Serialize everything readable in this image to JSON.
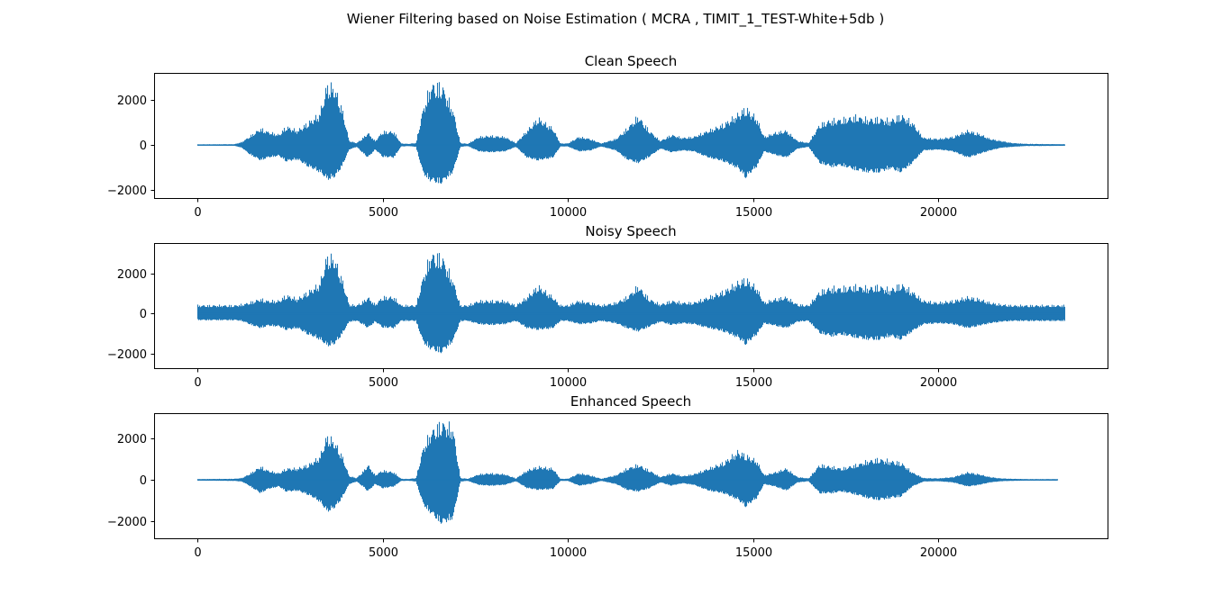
{
  "figure": {
    "suptitle": "Wiener Filtering based on Noise Estimation ( MCRA , TIMIT_1_TEST-White+5db )"
  },
  "chart_data": [
    {
      "type": "line",
      "title": "Clean Speech",
      "xlabel": "",
      "ylabel": "",
      "xlim": [
        -1170,
        24570
      ],
      "ylim": [
        -2350,
        3200
      ],
      "xticks": [
        0,
        5000,
        10000,
        15000,
        20000
      ],
      "yticks": [
        -2000,
        0,
        2000
      ],
      "xtick_labels": [
        "0",
        "5000",
        "10000",
        "15000",
        "20000"
      ],
      "ytick_labels": [
        "−2000",
        "0",
        "2000"
      ],
      "grid": false,
      "color": "#1f77b4",
      "n_samples": 23400,
      "envelope": {
        "x": [
          0,
          1000,
          1200,
          1400,
          1700,
          1900,
          2200,
          2400,
          2700,
          3000,
          3300,
          3500,
          3700,
          3900,
          4100,
          4300,
          4500,
          4600,
          4800,
          5000,
          5300,
          5500,
          5700,
          5900,
          6100,
          6300,
          6600,
          6900,
          7100,
          7300,
          7600,
          7900,
          8300,
          8600,
          8900,
          9200,
          9600,
          9800,
          10000,
          10300,
          10600,
          10900,
          11300,
          11600,
          11900,
          12200,
          12500,
          12800,
          13100,
          13400,
          13800,
          14200,
          14600,
          14800,
          15100,
          15300,
          15600,
          15900,
          16200,
          16500,
          16800,
          17100,
          17400,
          17800,
          18100,
          18400,
          18700,
          19000,
          19300,
          19600,
          20000,
          20400,
          20800,
          21100,
          21400,
          21700,
          22000,
          22400,
          22800,
          23400
        ],
        "max": [
          30,
          40,
          150,
          400,
          800,
          650,
          500,
          900,
          700,
          1100,
          1500,
          2900,
          2800,
          1800,
          200,
          100,
          400,
          600,
          200,
          650,
          650,
          80,
          60,
          100,
          1800,
          2900,
          2900,
          1700,
          100,
          60,
          400,
          450,
          400,
          100,
          700,
          1300,
          800,
          80,
          80,
          400,
          300,
          80,
          300,
          800,
          1400,
          700,
          200,
          500,
          350,
          400,
          700,
          1000,
          1500,
          1800,
          1300,
          400,
          600,
          700,
          200,
          100,
          1000,
          1200,
          1250,
          1400,
          1250,
          1300,
          1200,
          1450,
          1100,
          350,
          300,
          400,
          700,
          550,
          300,
          200,
          100,
          60,
          50,
          40
        ],
        "min": [
          -30,
          -40,
          -150,
          -500,
          -850,
          -700,
          -600,
          -900,
          -800,
          -1200,
          -1500,
          -1900,
          -1800,
          -1200,
          -250,
          -100,
          -500,
          -700,
          -250,
          -650,
          -700,
          -80,
          -60,
          -100,
          -1600,
          -2000,
          -2100,
          -1500,
          -100,
          -60,
          -350,
          -400,
          -350,
          -100,
          -700,
          -850,
          -700,
          -80,
          -80,
          -350,
          -300,
          -80,
          -300,
          -800,
          -1000,
          -650,
          -200,
          -400,
          -300,
          -350,
          -700,
          -900,
          -1300,
          -1800,
          -1200,
          -350,
          -550,
          -700,
          -200,
          -100,
          -1000,
          -1200,
          -1150,
          -1400,
          -1500,
          -1500,
          -1300,
          -1500,
          -1000,
          -300,
          -250,
          -350,
          -700,
          -500,
          -300,
          -150,
          -100,
          -50,
          -50,
          -40
        ]
      }
    },
    {
      "type": "line",
      "title": "Noisy Speech",
      "xlabel": "",
      "ylabel": "",
      "xlim": [
        -1170,
        24570
      ],
      "ylim": [
        -2700,
        3500
      ],
      "xticks": [
        0,
        5000,
        10000,
        15000,
        20000
      ],
      "yticks": [
        -2000,
        0,
        2000
      ],
      "xtick_labels": [
        "0",
        "5000",
        "10000",
        "15000",
        "20000"
      ],
      "ytick_labels": [
        "−2000",
        "0",
        "2000"
      ],
      "grid": false,
      "color": "#1f77b4",
      "n_samples": 23400,
      "envelope": {
        "x": [
          0,
          1000,
          1200,
          1400,
          1700,
          1900,
          2200,
          2400,
          2700,
          3000,
          3300,
          3500,
          3700,
          3900,
          4100,
          4300,
          4500,
          4600,
          4800,
          5000,
          5300,
          5500,
          5700,
          5900,
          6100,
          6300,
          6600,
          6900,
          7100,
          7300,
          7600,
          7900,
          8300,
          8600,
          8900,
          9200,
          9600,
          9800,
          10000,
          10300,
          10600,
          10900,
          11300,
          11600,
          11900,
          12200,
          12500,
          12800,
          13100,
          13400,
          13800,
          14200,
          14600,
          14800,
          15100,
          15300,
          15600,
          15900,
          16200,
          16500,
          16800,
          17100,
          17400,
          17800,
          18100,
          18400,
          18700,
          19000,
          19300,
          19600,
          20000,
          20400,
          20800,
          21100,
          21400,
          21700,
          22000,
          22400,
          22800,
          23400
        ],
        "max": [
          450,
          450,
          500,
          600,
          800,
          700,
          700,
          1000,
          800,
          1200,
          1600,
          3100,
          3000,
          1900,
          500,
          450,
          700,
          900,
          500,
          900,
          900,
          450,
          450,
          450,
          2000,
          3200,
          3100,
          1800,
          450,
          450,
          700,
          700,
          700,
          450,
          900,
          1500,
          900,
          450,
          450,
          700,
          600,
          450,
          600,
          900,
          1500,
          800,
          500,
          700,
          600,
          600,
          900,
          1200,
          1700,
          1900,
          1400,
          600,
          800,
          900,
          500,
          450,
          1200,
          1400,
          1400,
          1500,
          1400,
          1500,
          1300,
          1600,
          1200,
          700,
          600,
          700,
          900,
          800,
          600,
          500,
          450,
          450,
          450,
          450
        ],
        "min": [
          -400,
          -400,
          -450,
          -650,
          -900,
          -750,
          -800,
          -1000,
          -900,
          -1300,
          -1600,
          -2000,
          -1900,
          -1300,
          -500,
          -450,
          -700,
          -900,
          -500,
          -850,
          -900,
          -450,
          -450,
          -450,
          -1800,
          -2200,
          -2400,
          -1700,
          -450,
          -450,
          -650,
          -700,
          -650,
          -450,
          -900,
          -1000,
          -900,
          -450,
          -450,
          -650,
          -600,
          -450,
          -600,
          -900,
          -1100,
          -800,
          -500,
          -700,
          -600,
          -650,
          -900,
          -1100,
          -1500,
          -1900,
          -1300,
          -600,
          -750,
          -900,
          -500,
          -450,
          -1200,
          -1400,
          -1300,
          -1500,
          -1600,
          -1600,
          -1400,
          -1600,
          -1100,
          -650,
          -600,
          -650,
          -900,
          -750,
          -600,
          -500,
          -450,
          -450,
          -450,
          -450
        ]
      }
    },
    {
      "type": "line",
      "title": "Enhanced Speech",
      "xlabel": "",
      "ylabel": "",
      "xlim": [
        -1170,
        24570
      ],
      "ylim": [
        -2800,
        3200
      ],
      "xticks": [
        0,
        5000,
        10000,
        15000,
        20000
      ],
      "yticks": [
        -2000,
        0,
        2000
      ],
      "xtick_labels": [
        "0",
        "5000",
        "10000",
        "15000",
        "20000"
      ],
      "ytick_labels": [
        "−2000",
        "0",
        "2000"
      ],
      "grid": false,
      "color": "#1f77b4",
      "n_samples": 23200,
      "envelope": {
        "x": [
          0,
          1000,
          1200,
          1400,
          1700,
          1900,
          2200,
          2400,
          2700,
          3000,
          3300,
          3500,
          3700,
          3900,
          4100,
          4300,
          4500,
          4600,
          4800,
          5000,
          5300,
          5500,
          5700,
          5900,
          6100,
          6300,
          6600,
          6900,
          7100,
          7300,
          7600,
          7900,
          8300,
          8600,
          8900,
          9200,
          9600,
          9800,
          10000,
          10300,
          10600,
          10900,
          11300,
          11600,
          11900,
          12200,
          12500,
          12800,
          13100,
          13400,
          13800,
          14200,
          14600,
          14800,
          15100,
          15300,
          15600,
          15900,
          16200,
          16500,
          16800,
          17100,
          17400,
          17800,
          18100,
          18400,
          18700,
          19000,
          19300,
          19600,
          20000,
          20400,
          20800,
          21100,
          21400,
          21700,
          22000,
          22400,
          22800,
          23200
        ],
        "max": [
          40,
          60,
          100,
          300,
          700,
          500,
          350,
          600,
          600,
          800,
          1200,
          2300,
          2000,
          1300,
          200,
          100,
          500,
          800,
          250,
          500,
          400,
          60,
          50,
          100,
          1700,
          2500,
          3000,
          2700,
          100,
          60,
          300,
          350,
          300,
          80,
          500,
          700,
          600,
          60,
          60,
          350,
          250,
          60,
          250,
          600,
          800,
          500,
          150,
          350,
          200,
          300,
          600,
          900,
          1500,
          1300,
          1000,
          250,
          400,
          600,
          150,
          80,
          800,
          700,
          600,
          800,
          1000,
          1100,
          1000,
          900,
          400,
          100,
          80,
          150,
          400,
          300,
          150,
          80,
          60,
          40,
          40,
          40
        ],
        "min": [
          -40,
          -60,
          -100,
          -350,
          -800,
          -550,
          -400,
          -700,
          -650,
          -900,
          -1300,
          -1900,
          -1700,
          -1100,
          -250,
          -100,
          -450,
          -700,
          -250,
          -500,
          -400,
          -60,
          -50,
          -100,
          -1500,
          -2000,
          -2600,
          -2300,
          -100,
          -60,
          -300,
          -350,
          -300,
          -80,
          -500,
          -600,
          -550,
          -60,
          -60,
          -350,
          -250,
          -60,
          -250,
          -600,
          -700,
          -500,
          -150,
          -350,
          -200,
          -300,
          -650,
          -800,
          -1200,
          -1600,
          -1100,
          -250,
          -400,
          -650,
          -150,
          -80,
          -800,
          -800,
          -700,
          -900,
          -1100,
          -1200,
          -1100,
          -1000,
          -400,
          -100,
          -80,
          -150,
          -400,
          -300,
          -150,
          -80,
          -60,
          -40,
          -40,
          -40
        ]
      }
    }
  ]
}
